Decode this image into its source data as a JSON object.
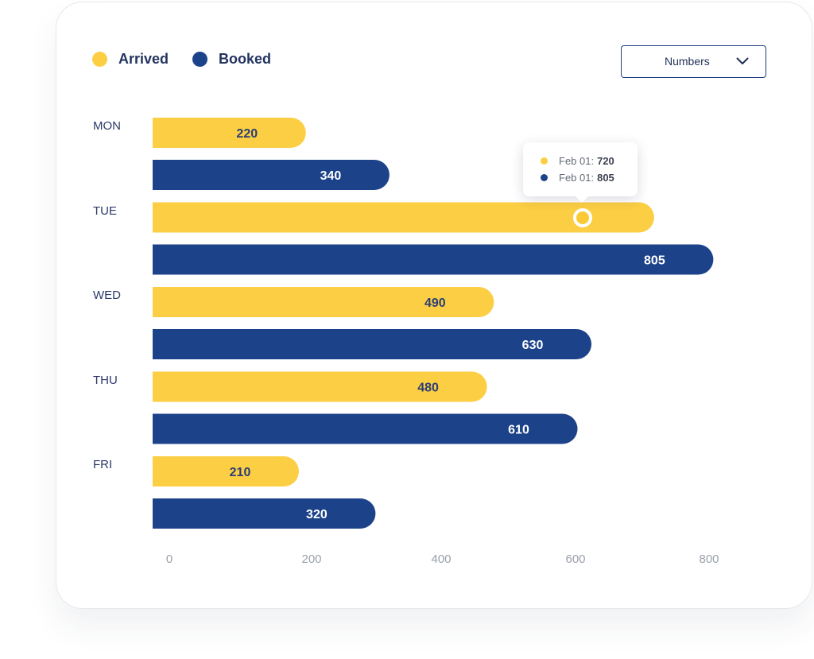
{
  "colors": {
    "arrived": "#fcce43",
    "booked": "#1c438a",
    "arrived_label": "#2a3f75",
    "booked_label": "#ffffff"
  },
  "legend": [
    {
      "name": "Arrived",
      "color": "#fcce43"
    },
    {
      "name": "Booked",
      "color": "#1c438a"
    }
  ],
  "dropdown": {
    "selected": "Numbers",
    "icon": "chevron-down-icon"
  },
  "tooltip": {
    "rows": [
      {
        "label": "Feb 01:",
        "value": "720",
        "color": "#fcce43"
      },
      {
        "label": "Feb 01:",
        "value": "805",
        "color": "#1c438a"
      }
    ]
  },
  "chart_data": {
    "type": "bar",
    "orientation": "horizontal",
    "categories": [
      "MON",
      "TUE",
      "WED",
      "THU",
      "FRI"
    ],
    "series": [
      {
        "name": "Arrived",
        "values": [
          220,
          720,
          490,
          480,
          210
        ]
      },
      {
        "name": "Booked",
        "values": [
          340,
          805,
          630,
          610,
          320
        ]
      }
    ],
    "data_labels": [
      [
        "220",
        "340"
      ],
      [
        "",
        "805"
      ],
      [
        "490",
        "630"
      ],
      [
        "480",
        "610"
      ],
      [
        "210",
        "320"
      ]
    ],
    "xticks": [
      0,
      200,
      400,
      600,
      800
    ],
    "xlim": [
      0,
      800
    ],
    "grid": false,
    "legend_position": "top-left"
  }
}
